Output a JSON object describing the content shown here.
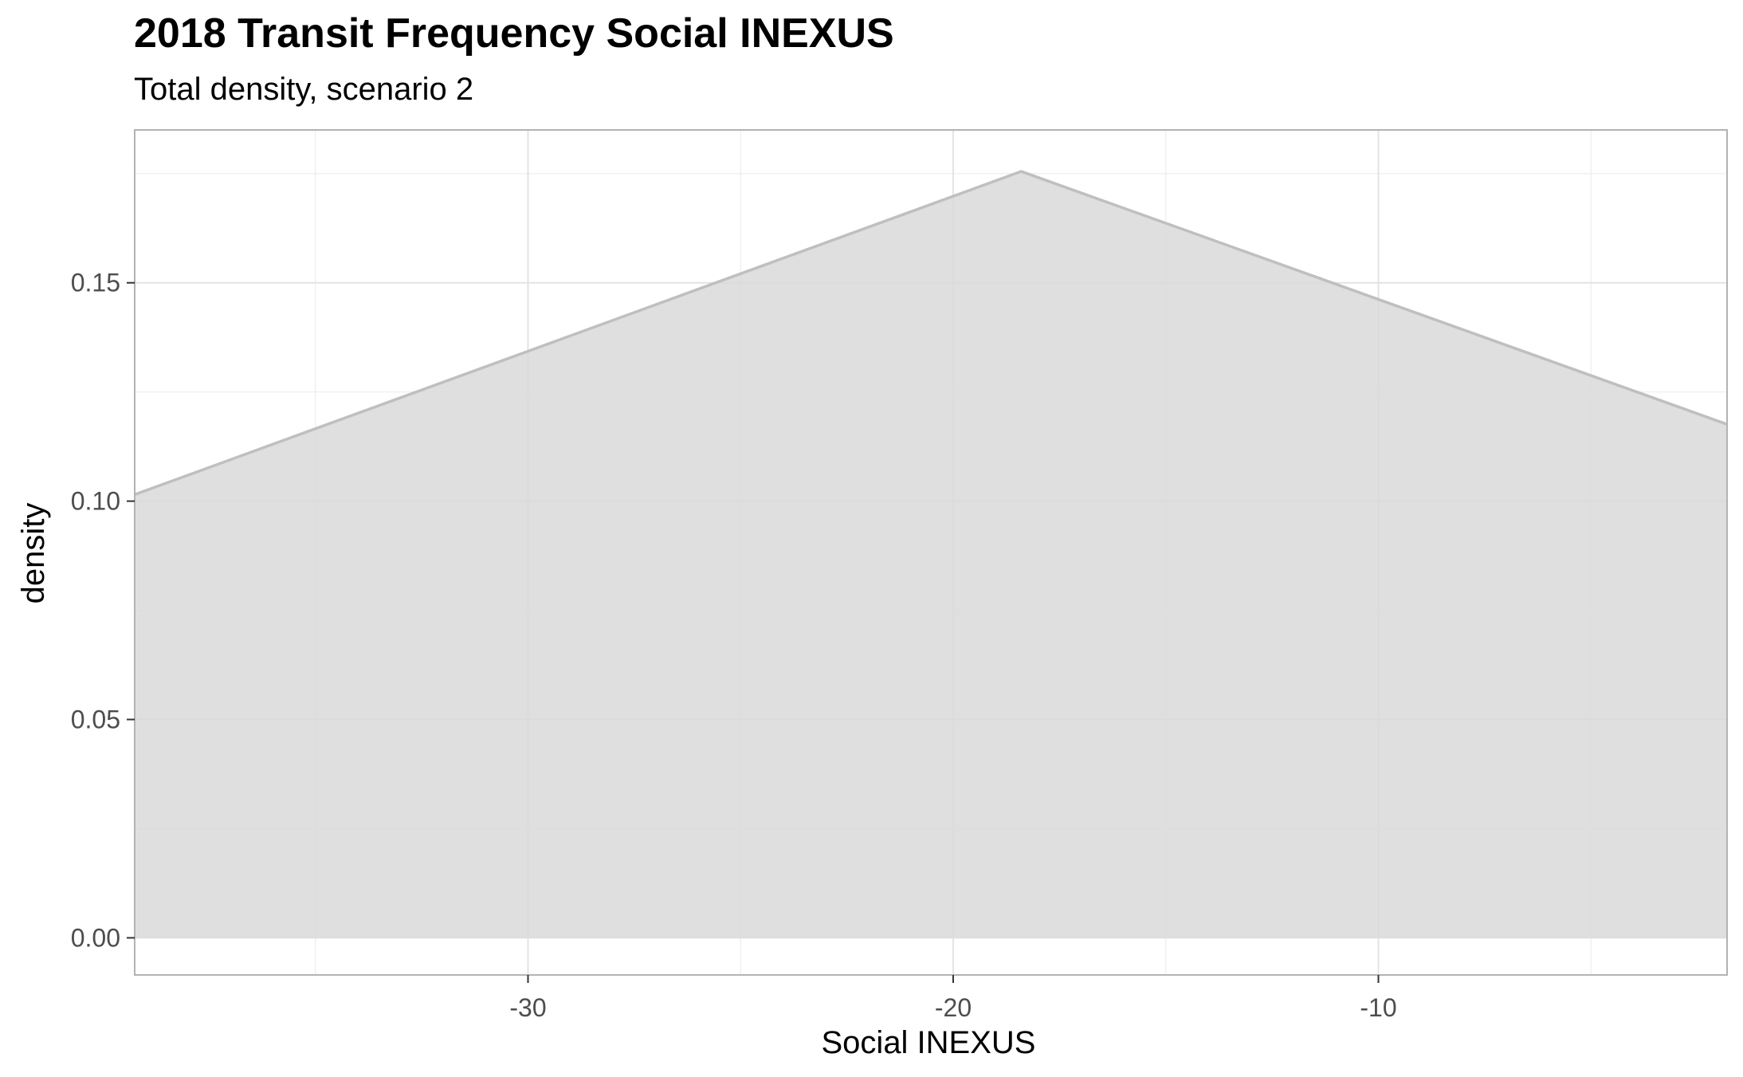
{
  "chart_data": {
    "type": "area",
    "title": "2018 Transit Frequency Social INEXUS",
    "subtitle": "Total density, scenario 2",
    "xlabel": "Social INEXUS",
    "ylabel": "density",
    "x": [
      -39.25,
      -18.4,
      -1.8
    ],
    "y": [
      0.1015,
      0.1755,
      0.1176
    ],
    "xlim": [
      -39.25,
      -1.8
    ],
    "ylim": [
      -0.0085,
      0.185
    ],
    "xticks": [
      -30,
      -20,
      -10
    ],
    "xtick_labels": [
      "-30",
      "-20",
      "-10"
    ],
    "yticks": [
      0,
      0.05,
      0.1,
      0.15
    ],
    "ytick_labels": [
      "0.00",
      "0.05",
      "0.10",
      "0.15"
    ],
    "grid": true,
    "legend": "none",
    "colors": {
      "fill": "#d9d9d9",
      "line": "#bfbfbf",
      "grid_major": "#e3e3e3",
      "grid_minor": "#f0f0f0",
      "panel_border": "#b3b3b3",
      "tick_text": "#4d4d4d"
    }
  }
}
